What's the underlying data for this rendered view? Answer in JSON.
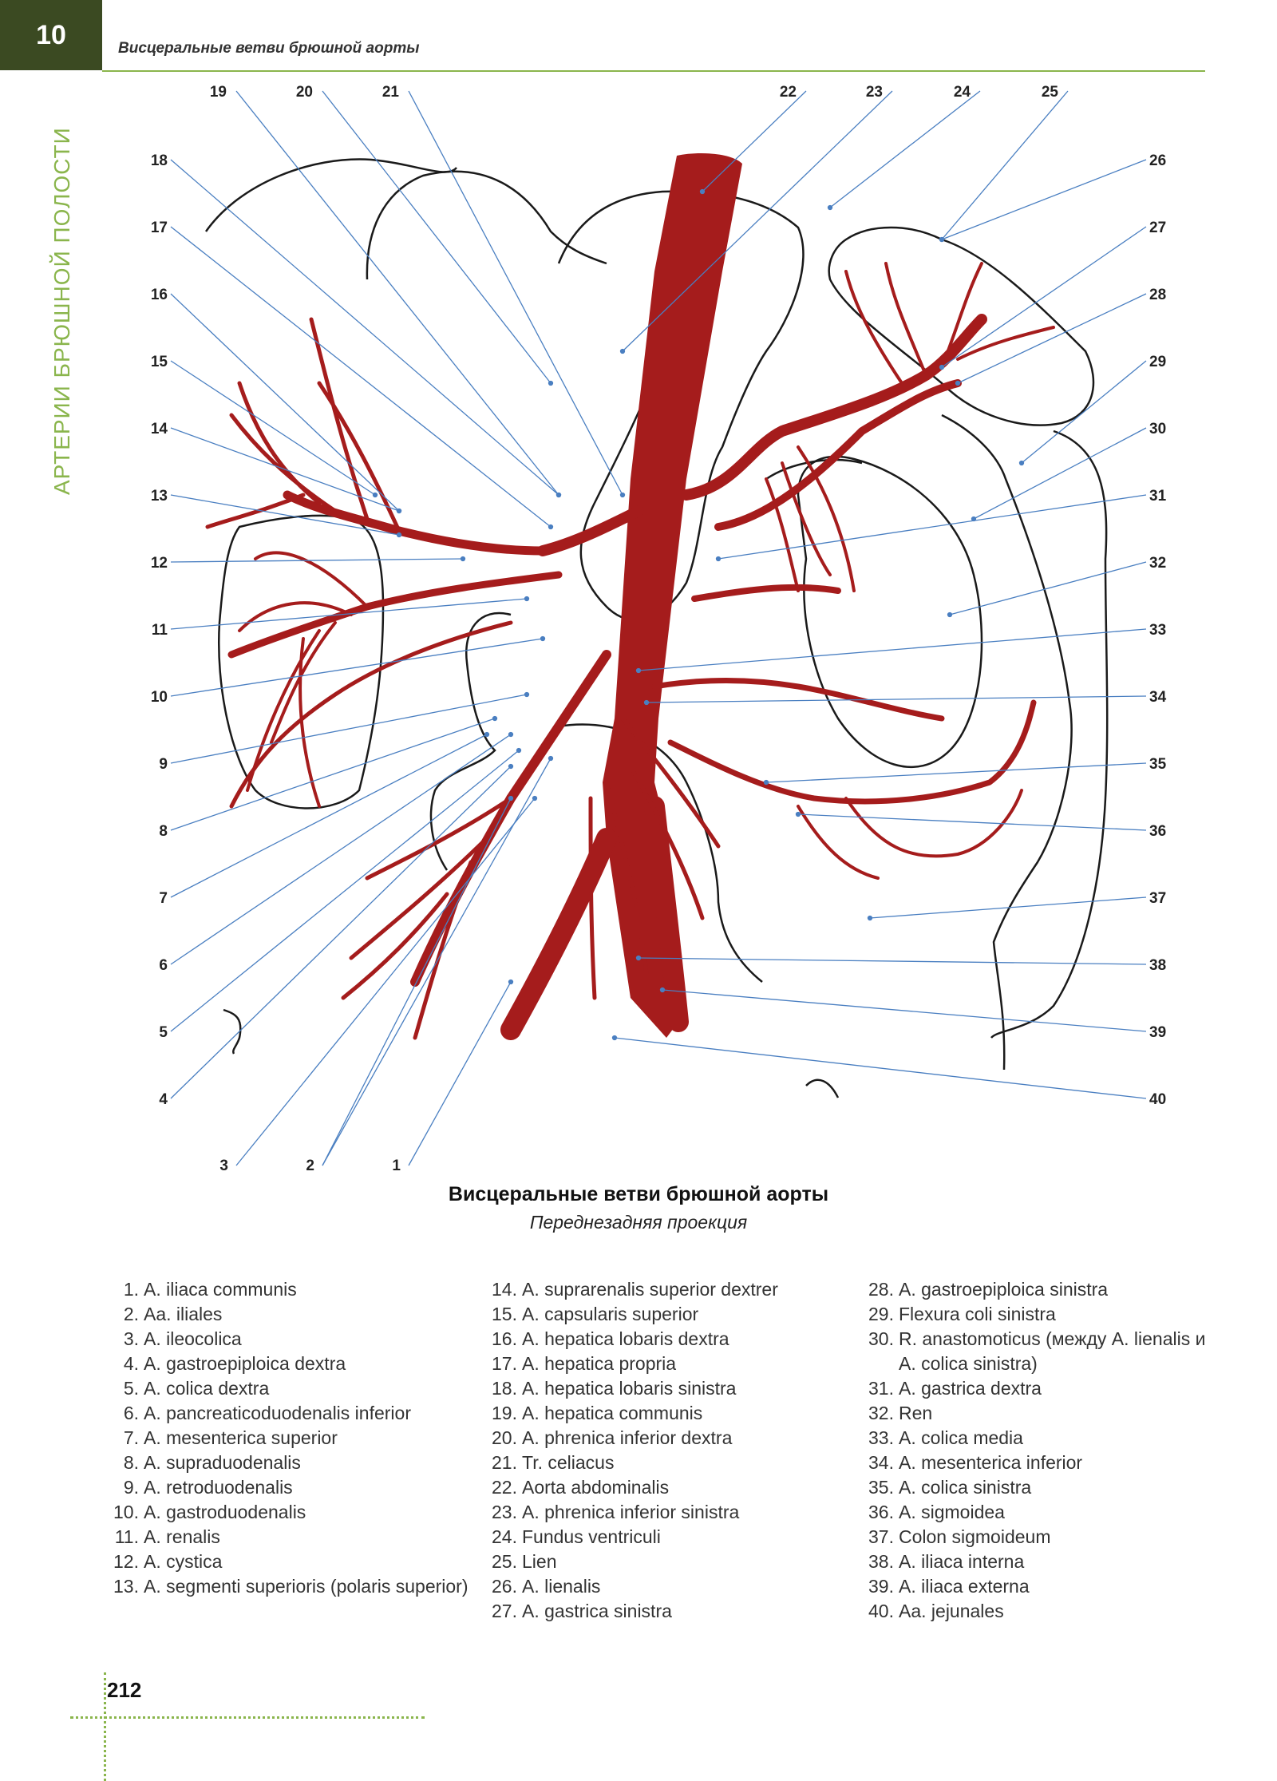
{
  "header": {
    "chapter_number": "10",
    "title": "Висцеральные ветви брюшной аорты"
  },
  "section_title": "АРТЕРИИ БРЮШНОЙ ПОЛОСТИ",
  "caption": {
    "title": "Висцеральные ветви брюшной аорты",
    "subtitle": "Переднезадняя проекция"
  },
  "colors": {
    "accent": "#3b4a22",
    "accent_green": "#8ab54c",
    "artery": "#a51c1c",
    "outline": "#1a1a1a",
    "leader": "#4a7fc1"
  },
  "diagram": {
    "callouts_left": [
      "18",
      "17",
      "16",
      "15",
      "14",
      "13",
      "12",
      "11",
      "10",
      "9",
      "8",
      "7",
      "6",
      "5",
      "4"
    ],
    "callouts_top": [
      "19",
      "20",
      "21",
      "22",
      "23",
      "24",
      "25"
    ],
    "callouts_right": [
      "26",
      "27",
      "28",
      "29",
      "30",
      "31",
      "32",
      "33",
      "34",
      "35",
      "36",
      "37",
      "38",
      "39",
      "40"
    ],
    "callouts_bottom": [
      "3",
      "2",
      "1"
    ]
  },
  "legend": {
    "col1": [
      {
        "n": "1.",
        "t": "A. iliaca communis"
      },
      {
        "n": "2.",
        "t": "Aa. iliales"
      },
      {
        "n": "3.",
        "t": "A. ileocolica"
      },
      {
        "n": "4.",
        "t": "A. gastroepiploica dextra"
      },
      {
        "n": "5.",
        "t": "A. colica dextra"
      },
      {
        "n": "6.",
        "t": "A. pancreaticoduodenalis inferior"
      },
      {
        "n": "7.",
        "t": "A. mesenterica superior"
      },
      {
        "n": "8.",
        "t": "A. supraduodenalis"
      },
      {
        "n": "9.",
        "t": "A. retroduodenalis"
      },
      {
        "n": "10.",
        "t": "A. gastroduodenalis"
      },
      {
        "n": "11.",
        "t": "A. renalis"
      },
      {
        "n": "12.",
        "t": "A. cystica"
      },
      {
        "n": "13.",
        "t": "A. segmenti superioris (polaris superior)"
      }
    ],
    "col2": [
      {
        "n": "14.",
        "t": "A. suprarenalis superior dextrer"
      },
      {
        "n": "15.",
        "t": "A. capsularis superior"
      },
      {
        "n": "16.",
        "t": "A. hepatica lobaris dextra"
      },
      {
        "n": "17.",
        "t": "A. hepatica propria"
      },
      {
        "n": "18.",
        "t": "A. hepatica lobaris sinistra"
      },
      {
        "n": "19.",
        "t": "A. hepatica communis"
      },
      {
        "n": "20.",
        "t": "A. phrenica inferior dextra"
      },
      {
        "n": "21.",
        "t": "Tr. celiacus"
      },
      {
        "n": "22.",
        "t": "Aorta abdominalis"
      },
      {
        "n": "23.",
        "t": "A. phrenica inferior sinistra"
      },
      {
        "n": "24.",
        "t": "Fundus ventriculi"
      },
      {
        "n": "25.",
        "t": "Lien"
      },
      {
        "n": "26.",
        "t": "A. lienalis"
      },
      {
        "n": "27.",
        "t": "A. gastrica sinistra"
      }
    ],
    "col3": [
      {
        "n": "28.",
        "t": "A. gastroepiploica sinistra"
      },
      {
        "n": "29.",
        "t": "Flexura coli sinistra"
      },
      {
        "n": "30.",
        "t": "R. anastomoticus (между A. lienalis и A. colica sinistra)"
      },
      {
        "n": "31.",
        "t": "A. gastrica dextra"
      },
      {
        "n": "32.",
        "t": "Ren"
      },
      {
        "n": "33.",
        "t": "A. colica media"
      },
      {
        "n": "34.",
        "t": "A. mesenterica inferior"
      },
      {
        "n": "35.",
        "t": "A. colica sinistra"
      },
      {
        "n": "36.",
        "t": "A. sigmoidea"
      },
      {
        "n": "37.",
        "t": "Colon sigmoideum"
      },
      {
        "n": "38.",
        "t": "A. iliaca interna"
      },
      {
        "n": "39.",
        "t": "A. iliaca externa"
      },
      {
        "n": "40.",
        "t": "Aa. jejunales"
      }
    ]
  },
  "page_number": "212"
}
